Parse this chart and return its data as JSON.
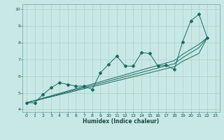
{
  "xlabel": "Humidex (Indice chaleur)",
  "background_color": "#c8e8e5",
  "grid_color": "#b0d4d0",
  "line_color": "#1a6b60",
  "x_data": [
    0,
    1,
    2,
    3,
    4,
    5,
    6,
    7,
    8,
    9,
    10,
    11,
    12,
    13,
    14,
    15,
    16,
    17,
    18,
    19,
    20,
    21,
    22,
    23
  ],
  "y_zigzag": [
    4.4,
    4.4,
    4.9,
    5.3,
    5.6,
    5.5,
    5.4,
    5.4,
    5.2,
    6.2,
    6.7,
    7.2,
    6.6,
    6.6,
    7.4,
    7.35,
    6.6,
    6.65,
    6.4,
    8.05,
    9.3,
    9.7,
    8.3,
    null
  ],
  "y_line1": [
    4.4,
    4.52,
    4.64,
    4.76,
    4.88,
    5.0,
    5.12,
    5.24,
    5.36,
    5.48,
    5.6,
    5.72,
    5.84,
    5.96,
    6.08,
    6.2,
    6.32,
    6.44,
    6.56,
    6.88,
    7.12,
    7.36,
    8.3,
    null
  ],
  "y_line2": [
    4.4,
    4.53,
    4.66,
    4.79,
    4.92,
    5.05,
    5.18,
    5.31,
    5.44,
    5.57,
    5.7,
    5.83,
    5.96,
    6.09,
    6.22,
    6.35,
    6.48,
    6.61,
    6.74,
    7.1,
    7.4,
    7.7,
    8.3,
    null
  ],
  "y_line3": [
    4.4,
    4.54,
    4.68,
    4.82,
    4.96,
    5.1,
    5.24,
    5.38,
    5.52,
    5.66,
    5.8,
    5.94,
    6.08,
    6.22,
    6.36,
    6.5,
    6.64,
    6.78,
    6.92,
    7.3,
    7.6,
    7.9,
    8.3,
    null
  ],
  "xlim": [
    -0.5,
    23.5
  ],
  "ylim": [
    3.85,
    10.3
  ],
  "yticks": [
    4,
    5,
    6,
    7,
    8,
    9,
    10
  ],
  "xticks": [
    0,
    1,
    2,
    3,
    4,
    5,
    6,
    7,
    8,
    9,
    10,
    11,
    12,
    13,
    14,
    15,
    16,
    17,
    18,
    19,
    20,
    21,
    22,
    23
  ]
}
